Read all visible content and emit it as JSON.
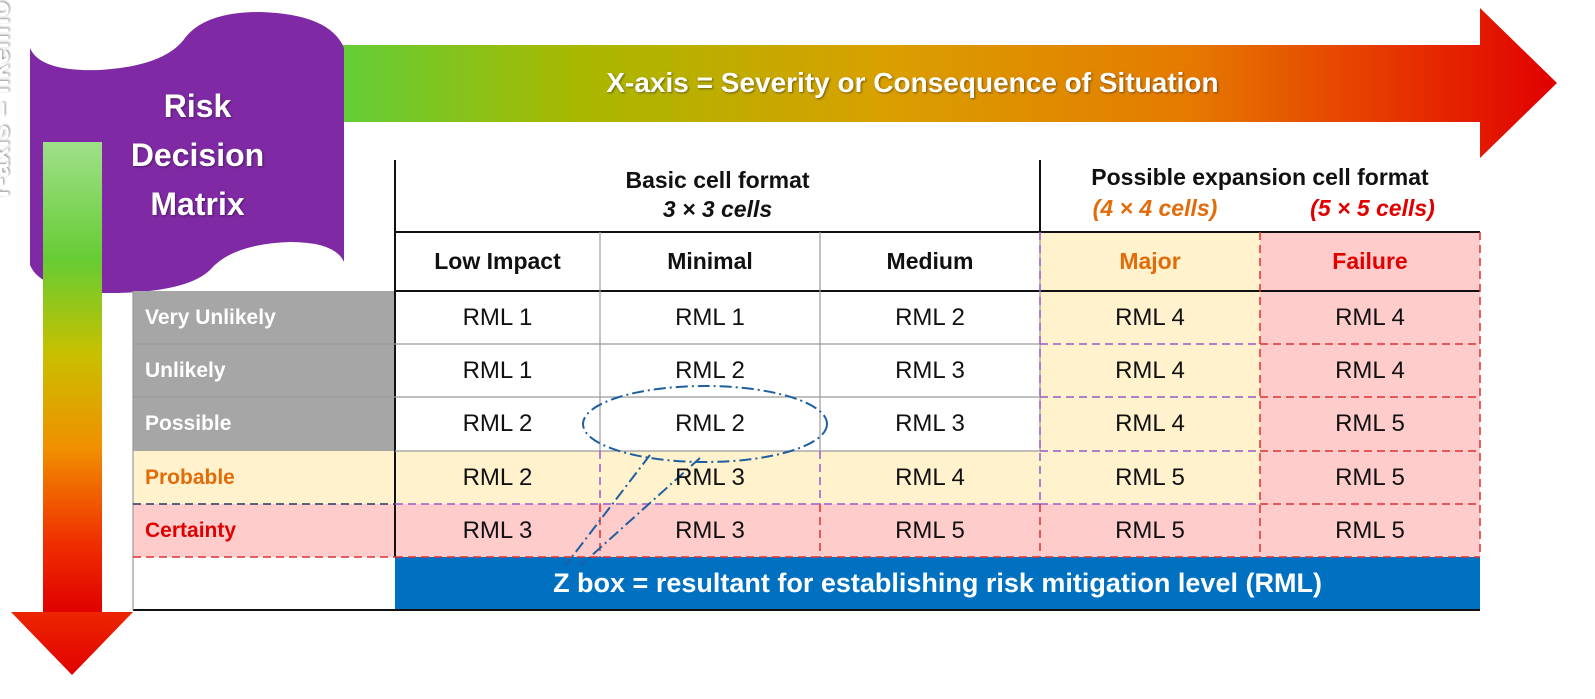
{
  "title_lines": [
    "Risk",
    "Decision",
    "Matrix"
  ],
  "x_axis_label": "X-axis = Severity or Consequence of Situation",
  "y_axis_label": "Y-axis = likelihood or frequency",
  "basic_header": {
    "title": "Basic cell format",
    "subtitle": "3 × 3 cells"
  },
  "expansion_header": {
    "title": "Possible expansion cell format",
    "four": "(4 × 4 cells)",
    "five": "(5 × 5 cells)"
  },
  "columns": [
    "Low Impact",
    "Minimal",
    "Medium",
    "Major",
    "Failure"
  ],
  "rows": [
    {
      "label": "Very Unlikely",
      "cells": [
        "RML 1",
        "RML 1",
        "RML 2",
        "RML 4",
        "RML 4"
      ]
    },
    {
      "label": "Unlikely",
      "cells": [
        "RML 1",
        "RML 2",
        "RML 3",
        "RML 4",
        "RML 4"
      ]
    },
    {
      "label": "Possible",
      "cells": [
        "RML 2",
        "RML 2",
        "RML 3",
        "RML 4",
        "RML 5"
      ]
    },
    {
      "label": "Probable",
      "cells": [
        "RML 2",
        "RML 3",
        "RML 4",
        "RML 5",
        "RML 5"
      ]
    },
    {
      "label": "Certainty",
      "cells": [
        "RML 3",
        "RML 3",
        "RML 5",
        "RML 5",
        "RML 5"
      ]
    }
  ],
  "z_box_label": "Z box = resultant for establishing risk mitigation level (RML)",
  "colors": {
    "purple": "#7f2aa4",
    "gray_header": "#a6a6a6",
    "light_orange": "#fff2cc",
    "light_red": "#ffcccc",
    "orange_text": "#e36c0a",
    "red_text": "#e00000",
    "blue_bar": "#0070c0",
    "arrow_green": "#66cc33",
    "arrow_yellow": "#b3b300",
    "arrow_orange": "#e07a00",
    "arrow_red": "#e00000"
  }
}
